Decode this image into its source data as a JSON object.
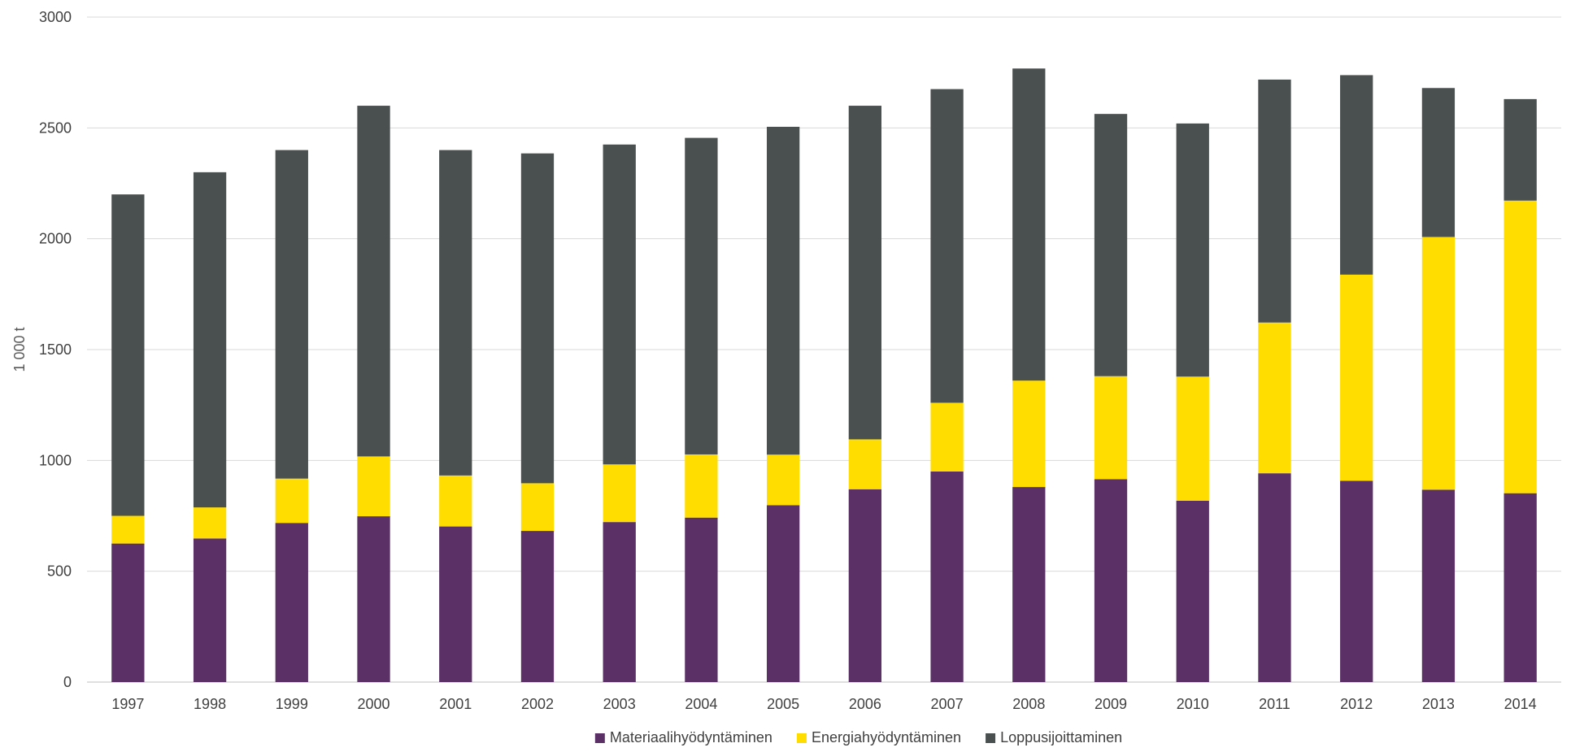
{
  "chart_data": {
    "type": "bar",
    "stacked": true,
    "ylabel": "1 000 t",
    "ylim": [
      0,
      3000
    ],
    "yticks": [
      0,
      500,
      1000,
      1500,
      2000,
      2500,
      3000
    ],
    "grid": true,
    "legend_position": "bottom",
    "categories": [
      "1997",
      "1998",
      "1999",
      "2000",
      "2001",
      "2002",
      "2003",
      "2004",
      "2005",
      "2006",
      "2007",
      "2008",
      "2009",
      "2010",
      "2011",
      "2012",
      "2013",
      "2014"
    ],
    "series": [
      {
        "name": "Materiaalihyödyntäminen",
        "color": "#5a3066",
        "values": [
          625,
          648,
          718,
          748,
          702,
          682,
          722,
          742,
          798,
          870,
          950,
          880,
          915,
          818,
          942,
          908,
          868,
          852
        ]
      },
      {
        "name": "Energiahyödyntäminen",
        "color": "#ffdd00",
        "values": [
          125,
          140,
          200,
          270,
          230,
          215,
          260,
          285,
          228,
          225,
          310,
          480,
          465,
          560,
          680,
          930,
          1140,
          1320
        ]
      },
      {
        "name": "Loppusijoittaminen",
        "color": "#4a4f4f",
        "values": [
          1450,
          1512,
          1482,
          1582,
          1468,
          1488,
          1443,
          1428,
          1479,
          1505,
          1415,
          1408,
          1183,
          1142,
          1096,
          900,
          672,
          458
        ]
      }
    ]
  }
}
